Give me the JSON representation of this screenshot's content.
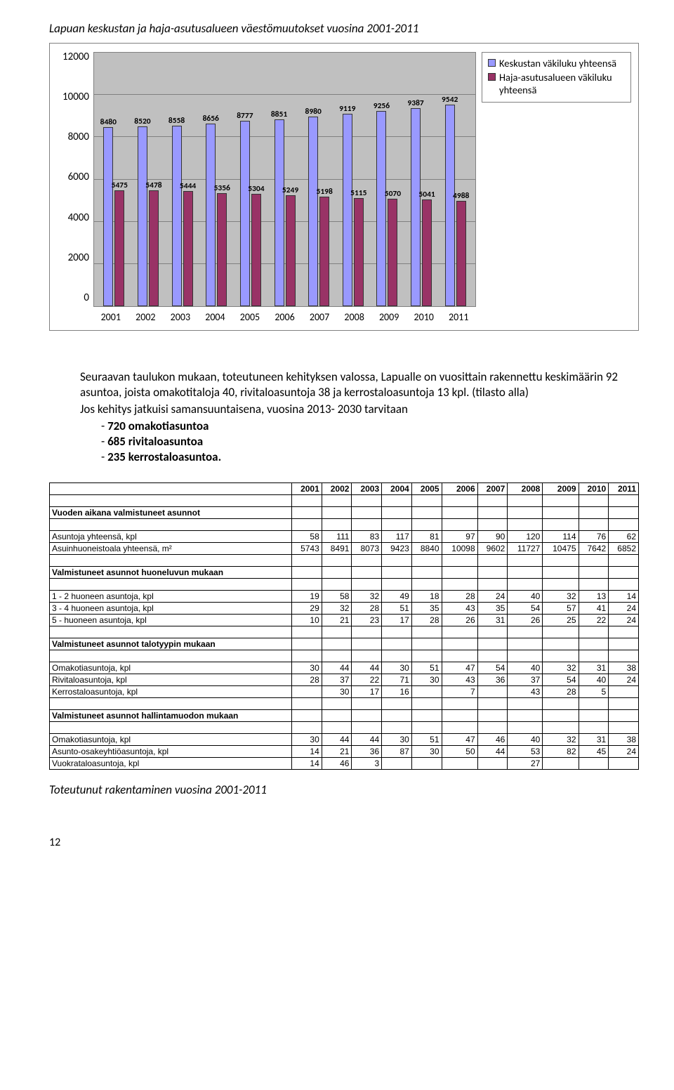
{
  "title": "Lapuan keskustan ja haja-asutusalueen väestömuutokset vuosina 2001-2011",
  "chart": {
    "ymax": 12000,
    "ytick_step": 2000,
    "yticks": [
      "12000",
      "10000",
      "8000",
      "6000",
      "4000",
      "2000",
      "0"
    ],
    "years": [
      "2001",
      "2002",
      "2003",
      "2004",
      "2005",
      "2006",
      "2007",
      "2008",
      "2009",
      "2010",
      "2011"
    ],
    "series_blue": [
      8480,
      8520,
      8558,
      8656,
      8777,
      8851,
      8980,
      9119,
      9256,
      9387,
      9542
    ],
    "series_red": [
      5475,
      5478,
      5444,
      5356,
      5304,
      5249,
      5198,
      5115,
      5070,
      5041,
      4988
    ],
    "legend": [
      {
        "color": "#9999ff",
        "text": "Keskustan väkiluku yhteensä"
      },
      {
        "color": "#993366",
        "text": "Haja-asutusalueen väkiluku yhteensä"
      }
    ],
    "grid_color": "#808080",
    "plot_bg": "#c0c0c0"
  },
  "paragraph": {
    "p1": "Seuraavan taulukon mukaan, toteutuneen kehityksen valossa, Lapualle on vuosittain rakennettu keskimäärin 92 asuntoa, joista omakotitaloja 40, rivitaloasuntoja 38 ja kerrostaloasuntoja 13 kpl. (tilasto alla)",
    "p2": "Jos kehitys jatkuisi samansuuntaisena, vuosina 2013- 2030 tarvitaan",
    "b1": "720 omakotiasuntoa",
    "b2": "685 rivitaloasuntoa",
    "b3": "235 kerrostaloasuntoa."
  },
  "table": {
    "years": [
      "2001",
      "2002",
      "2003",
      "2004",
      "2005",
      "2006",
      "2007",
      "2008",
      "2009",
      "2010",
      "2011"
    ],
    "sections": [
      {
        "title": "Vuoden aikana valmistuneet asunnot",
        "rows": [
          {
            "label": "Asuntoja yhteensä, kpl",
            "vals": [
              "58",
              "111",
              "83",
              "117",
              "81",
              "97",
              "90",
              "120",
              "114",
              "76",
              "62"
            ]
          },
          {
            "label": "Asuinhuoneistoala yhteensä, m²",
            "vals": [
              "5743",
              "8491",
              "8073",
              "9423",
              "8840",
              "10098",
              "9602",
              "11727",
              "10475",
              "7642",
              "6852"
            ]
          }
        ]
      },
      {
        "title": "Valmistuneet asunnot huoneluvun mukaan",
        "rows": [
          {
            "label": "1 - 2 huoneen asuntoja, kpl",
            "vals": [
              "19",
              "58",
              "32",
              "49",
              "18",
              "28",
              "24",
              "40",
              "32",
              "13",
              "14"
            ]
          },
          {
            "label": "3 - 4 huoneen asuntoja, kpl",
            "vals": [
              "29",
              "32",
              "28",
              "51",
              "35",
              "43",
              "35",
              "54",
              "57",
              "41",
              "24"
            ]
          },
          {
            "label": "5 -    huoneen asuntoja, kpl",
            "vals": [
              "10",
              "21",
              "23",
              "17",
              "28",
              "26",
              "31",
              "26",
              "25",
              "22",
              "24"
            ]
          }
        ]
      },
      {
        "title": "Valmistuneet asunnot talotyypin mukaan",
        "rows": [
          {
            "label": "Omakotiasuntoja, kpl",
            "vals": [
              "30",
              "44",
              "44",
              "30",
              "51",
              "47",
              "54",
              "40",
              "32",
              "31",
              "38"
            ]
          },
          {
            "label": "Rivitaloasuntoja, kpl",
            "vals": [
              "28",
              "37",
              "22",
              "71",
              "30",
              "43",
              "36",
              "37",
              "54",
              "40",
              "24"
            ]
          },
          {
            "label": "Kerrostaloasuntoja, kpl",
            "vals": [
              "",
              "30",
              "17",
              "16",
              "",
              "7",
              "",
              "43",
              "28",
              "5",
              ""
            ]
          }
        ]
      },
      {
        "title": "Valmistuneet asunnot hallintamuodon mukaan",
        "rows": [
          {
            "label": "Omakotiasuntoja, kpl",
            "vals": [
              "30",
              "44",
              "44",
              "30",
              "51",
              "47",
              "46",
              "40",
              "32",
              "31",
              "38"
            ]
          },
          {
            "label": "Asunto-osakeyhtiöasuntoja, kpl",
            "vals": [
              "14",
              "21",
              "36",
              "87",
              "30",
              "50",
              "44",
              "53",
              "82",
              "45",
              "24"
            ]
          },
          {
            "label": "Vuokrataloasuntoja, kpl",
            "vals": [
              "14",
              "46",
              "3",
              "",
              "",
              "",
              "",
              "27",
              "",
              "",
              ""
            ]
          }
        ]
      }
    ]
  },
  "footer": "Toteutunut rakentaminen vuosina 2001-2011",
  "pagenum": "12"
}
